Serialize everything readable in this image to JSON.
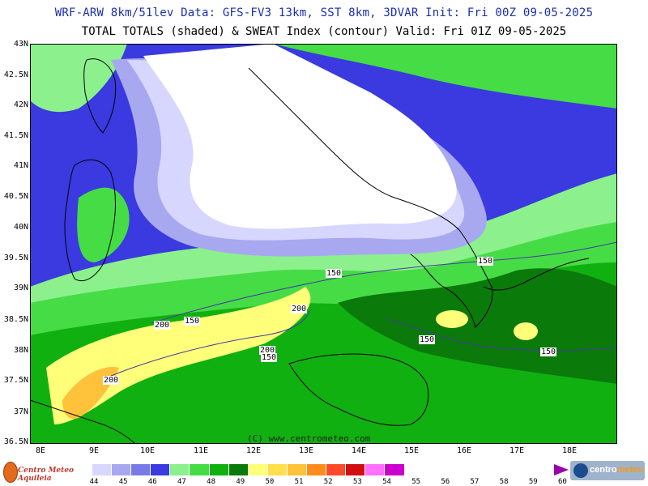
{
  "header": {
    "line1": "WRF-ARW 8km/51lev  Data: GFS-FV3 13km, SST 8km, 3DVAR  Init: Fri 00Z 09-05-2025",
    "line2": "TOTAL TOTALS (shaded) & SWEAT Index (contour)  Valid: Fri 01Z 09-05-2025"
  },
  "map": {
    "lat_labels": [
      "43N",
      "42.5N",
      "42N",
      "41.5N",
      "41N",
      "40.5N",
      "40N",
      "39.5N",
      "39N",
      "38.5N",
      "38N",
      "37.5N",
      "37N",
      "36.5N"
    ],
    "lon_labels": [
      "8E",
      "9E",
      "10E",
      "11E",
      "12E",
      "13E",
      "14E",
      "15E",
      "16E",
      "17E",
      "18E"
    ],
    "contour_labels": [
      "150",
      "150",
      "200",
      "150",
      "200",
      "200",
      "150",
      "150",
      "200",
      "150"
    ],
    "credit": "(C) www.centrometeo.com"
  },
  "colorbar": {
    "labels": [
      "44",
      "45",
      "46",
      "47",
      "48",
      "49",
      "50",
      "51",
      "52",
      "53",
      "54",
      "55",
      "56",
      "57",
      "58",
      "59",
      "60"
    ],
    "colors": [
      "#d6d6ff",
      "#a8a8f0",
      "#7a7ae6",
      "#3a3ae0",
      "#8cf08c",
      "#46dc46",
      "#10b010",
      "#0a7a0a",
      "#ffff7a",
      "#ffe04a",
      "#ffc23a",
      "#ff8c1a",
      "#ff4a2a",
      "#d01010",
      "#ff70ff",
      "#cc00cc"
    ]
  },
  "logos": {
    "left": "Centro Meteo Aquileia",
    "right_a": "centro",
    "right_b": "meteo"
  }
}
